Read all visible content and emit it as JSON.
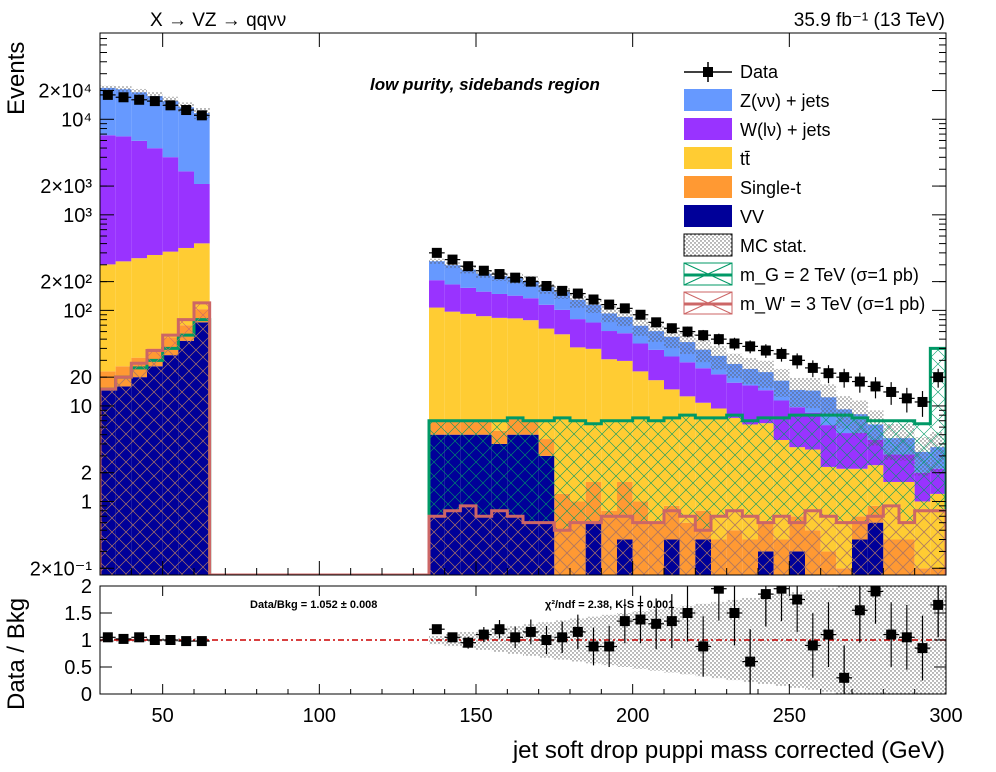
{
  "chart_data": {
    "type": "bar",
    "stacked": true,
    "title_left": "X → VZ → qqνν",
    "title_right": "35.9 fb⁻¹ (13 TeV)",
    "region_label": "low purity, sidebands region",
    "xlabel": "jet soft drop puppi mass corrected (GeV)",
    "ylabel": "Events",
    "ratio_ylabel": "Data / Bkg",
    "xlim": [
      30,
      300
    ],
    "ylog": true,
    "y_ticks": [
      "2×10⁻¹",
      "1",
      "2",
      "10",
      "20",
      "10²",
      "2×10²",
      "10³",
      "2×10³",
      "10⁴",
      "2×10⁴"
    ],
    "x_ticks": [
      "50",
      "100",
      "150",
      "200",
      "250",
      "300"
    ],
    "ratio_ylim": [
      0,
      2
    ],
    "ratio_ticks": [
      "0",
      "0.5",
      "1",
      "1.5",
      "2"
    ],
    "data_bkg_label": "Data/Bkg = 1.052 ± 0.008",
    "chi2_label": "χ²/ndf = 2.38,   K-S = 0.001",
    "legend": [
      {
        "label": "Data",
        "kind": "data"
      },
      {
        "label": "Z(νν) + jets",
        "kind": "fill",
        "color": "#6699ff"
      },
      {
        "label": "W(lν) + jets",
        "kind": "fill",
        "color": "#9933ff"
      },
      {
        "label": "tt̄",
        "kind": "fill",
        "color": "#ffcc33"
      },
      {
        "label": "Single-t",
        "kind": "fill",
        "color": "#ff9933"
      },
      {
        "label": "VV",
        "kind": "fill",
        "color": "#000099"
      },
      {
        "label": "MC stat.",
        "kind": "hatch"
      },
      {
        "label": "m_G = 2 TeV (σ=1 pb)",
        "kind": "line",
        "color": "#009966"
      },
      {
        "label": "m_W' = 3 TeV (σ=1 pb)",
        "kind": "line",
        "color": "#cc6666"
      }
    ],
    "bins_low": [
      30,
      35,
      40,
      45,
      50,
      55,
      60
    ],
    "bins_high": [
      135,
      140,
      145,
      150,
      155,
      160,
      165,
      170,
      175,
      180,
      185,
      190,
      195,
      200,
      205,
      210,
      215,
      220,
      225,
      230,
      235,
      240,
      245,
      250,
      255,
      260,
      265,
      270,
      275,
      280,
      285,
      290,
      295
    ],
    "bin_width": 5,
    "low": {
      "VV": [
        15,
        16,
        20,
        26,
        34,
        48,
        75
      ],
      "single_t": [
        8,
        10,
        12,
        14,
        18,
        22,
        28
      ],
      "ttbar": [
        280,
        300,
        320,
        340,
        360,
        380,
        400
      ],
      "W": [
        6500,
        6300,
        5600,
        4600,
        3600,
        2400,
        1600
      ],
      "Z": [
        14500,
        14000,
        13200,
        12500,
        11500,
        10500,
        9500
      ],
      "data": [
        18000,
        17000,
        16000,
        15500,
        14000,
        12500,
        11000
      ],
      "signal_G": [
        15,
        20,
        25,
        30,
        40,
        55,
        80
      ],
      "signal_W": [
        15,
        20,
        28,
        38,
        55,
        80,
        120
      ]
    },
    "high": {
      "VV": [
        5,
        5,
        5,
        5,
        4,
        5,
        5,
        3,
        0,
        0,
        0.6,
        0,
        0.4,
        0,
        0,
        0.4,
        0,
        0.4,
        0,
        0,
        0,
        0.3,
        0,
        0.3,
        0,
        0,
        0,
        0.4,
        0.6,
        0,
        0.1,
        0,
        0
      ],
      "single_t": [
        2,
        2,
        2,
        2,
        1.5,
        2.5,
        2,
        1.5,
        1.2,
        1,
        1,
        0.8,
        1.2,
        1,
        0.6,
        0.5,
        0.6,
        0.4,
        0.4,
        0.5,
        0.4,
        0.3,
        0.4,
        0.4,
        0.5,
        0.3,
        0.2,
        0.3,
        0.3,
        0.4,
        0.3,
        0.2,
        0.2
      ],
      "ttbar": [
        100,
        90,
        85,
        80,
        78,
        75,
        72,
        60,
        55,
        40,
        38,
        30,
        28,
        22,
        18,
        14,
        12,
        10,
        9,
        7,
        6,
        6,
        4,
        3,
        3,
        2,
        2,
        1.5,
        1.5,
        1.2,
        1.2,
        0.8,
        1
      ],
      "W": [
        100,
        90,
        80,
        70,
        65,
        60,
        55,
        50,
        45,
        40,
        35,
        30,
        28,
        22,
        20,
        18,
        16,
        14,
        12,
        10,
        10,
        8,
        7,
        6,
        5,
        4,
        3,
        3,
        2,
        1.5,
        1.5,
        1,
        1
      ],
      "Z": [
        120,
        110,
        95,
        85,
        80,
        75,
        70,
        60,
        55,
        48,
        40,
        32,
        28,
        24,
        22,
        20,
        18,
        14,
        12,
        10,
        8,
        8,
        7,
        5,
        6,
        6,
        4,
        3,
        2,
        1.5,
        1.5,
        1.3,
        1.5
      ],
      "data": [
        400,
        340,
        290,
        260,
        240,
        220,
        200,
        180,
        160,
        150,
        130,
        115,
        105,
        90,
        75,
        65,
        60,
        55,
        50,
        45,
        42,
        38,
        35,
        30,
        25,
        22,
        20,
        18,
        16,
        14,
        12,
        11,
        20
      ],
      "signal_G": [
        7,
        7,
        7,
        7,
        7,
        7.5,
        7,
        7,
        7.5,
        7,
        6.5,
        7,
        7,
        7.5,
        7,
        7.5,
        8,
        7.5,
        7.5,
        8,
        7,
        7.5,
        7.5,
        8,
        8,
        8,
        8,
        7.5,
        7,
        7,
        7,
        6.5,
        40
      ],
      "signal_W": [
        0.7,
        0.8,
        0.9,
        0.7,
        0.8,
        0.7,
        0.6,
        0.6,
        0.5,
        0.6,
        0.6,
        0.7,
        0.7,
        0.6,
        0.6,
        0.8,
        0.7,
        0.5,
        0.7,
        0.8,
        0.7,
        0.6,
        0.7,
        0.6,
        0.8,
        0.7,
        0.6,
        0.6,
        0.7,
        0.9,
        0.6,
        0.8,
        0.8
      ]
    },
    "ratio_low": [
      1.05,
      1.02,
      1.05,
      1.0,
      1.0,
      0.98,
      0.98
    ],
    "ratio_high": [
      1.2,
      1.05,
      0.95,
      1.1,
      1.2,
      1.05,
      1.15,
      1.0,
      1.05,
      1.15,
      0.88,
      0.88,
      1.35,
      1.38,
      1.3,
      1.35,
      1.5,
      0.88,
      1.95,
      1.5,
      0.6,
      1.85,
      1.95,
      1.75,
      0.9,
      1.1,
      0.3,
      1.55,
      1.9,
      1.1,
      1.05,
      0.85,
      1.65
    ],
    "signal_low_floor": 0.17
  }
}
